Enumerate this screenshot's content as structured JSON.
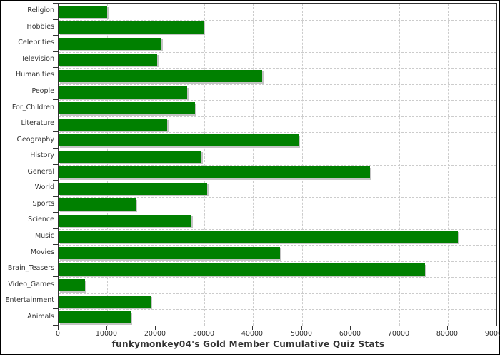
{
  "chart_data": {
    "type": "bar",
    "orientation": "horizontal",
    "title": "funkymonkey04's Gold Member Cumulative Quiz Stats",
    "categories": [
      "Religion",
      "Hobbies",
      "Celebrities",
      "Television",
      "Humanities",
      "People",
      "For_Children",
      "Literature",
      "Geography",
      "History",
      "General",
      "World",
      "Sports",
      "Science",
      "Music",
      "Movies",
      "Brain_Teasers",
      "Video_Games",
      "Entertainment",
      "Animals"
    ],
    "values": [
      10000,
      29800,
      21200,
      20300,
      41800,
      26500,
      28000,
      22300,
      49300,
      29300,
      64000,
      30600,
      15900,
      27300,
      82000,
      45500,
      75300,
      5400,
      19000,
      14900
    ],
    "xlabel": "",
    "ylabel": "",
    "xlim": [
      0,
      90000
    ],
    "x_ticks": [
      0,
      10000,
      20000,
      30000,
      40000,
      50000,
      60000,
      70000,
      80000,
      90000
    ],
    "grid": "on",
    "legend": "none",
    "bar_color": "#008000",
    "shadow_color": "#c4c4c4",
    "axis_color": "#333333",
    "grid_color": "#cccccc",
    "background_color": "#ffffff"
  }
}
